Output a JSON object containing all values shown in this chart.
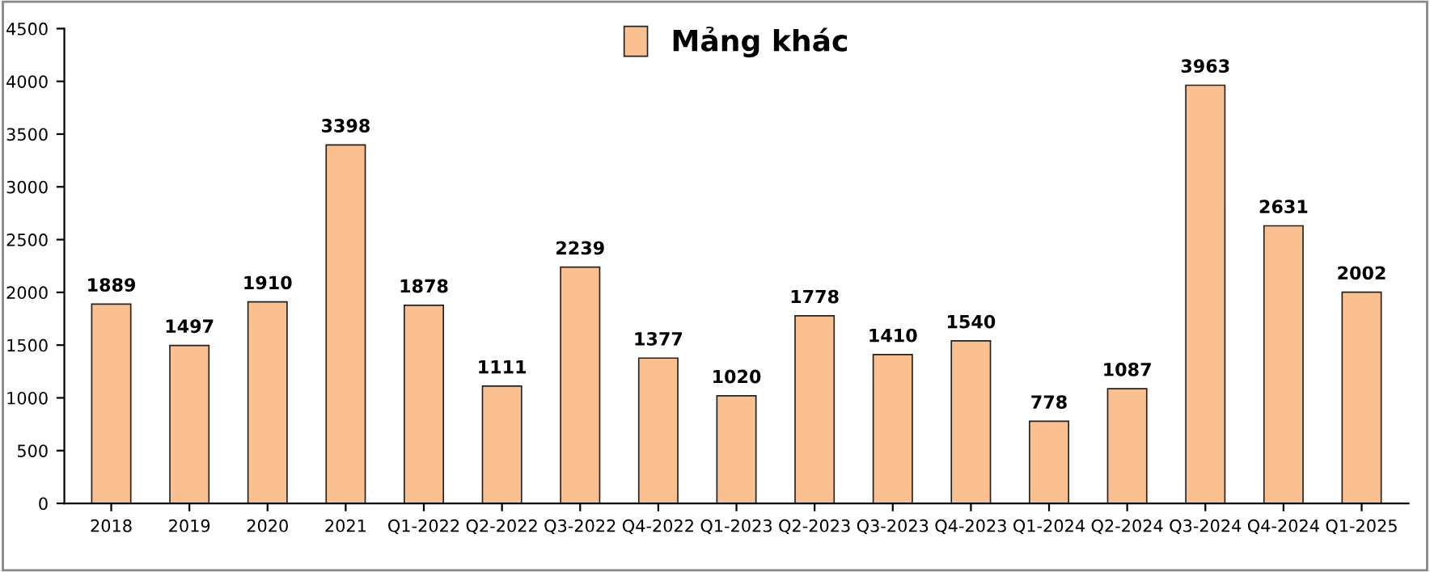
{
  "chart_data": {
    "type": "bar",
    "categories": [
      "2018",
      "2019",
      "2020",
      "2021",
      "Q1-2022",
      "Q2-2022",
      "Q3-2022",
      "Q4-2022",
      "Q1-2023",
      "Q2-2023",
      "Q3-2023",
      "Q4-2023",
      "Q1-2024",
      "Q2-2024",
      "Q3-2024",
      "Q4-2024",
      "Q1-2025"
    ],
    "series": [
      {
        "name": "Mảng khác",
        "color": "#fac090",
        "values": [
          1889,
          1497,
          1910,
          3398,
          1878,
          1111,
          2239,
          1377,
          1020,
          1778,
          1410,
          1540,
          778,
          1087,
          3963,
          2631,
          2002
        ]
      }
    ],
    "ylim": [
      0,
      4500
    ],
    "yticks": [
      0,
      500,
      1000,
      1500,
      2000,
      2500,
      3000,
      3500,
      4000,
      4500
    ],
    "data_labels": true,
    "legend": "top",
    "grid": false
  }
}
